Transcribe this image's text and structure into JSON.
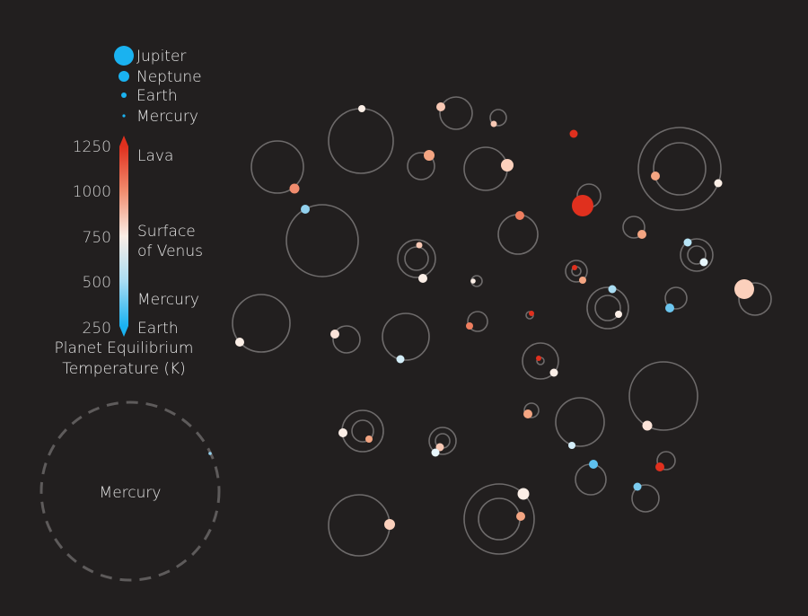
{
  "size_legend": [
    {
      "label": "Jupiter",
      "color": "#1ab2f0"
    },
    {
      "label": "Neptune",
      "color": "#1ab2f0"
    },
    {
      "label": "Earth",
      "color": "#1ab2f0"
    },
    {
      "label": "Mercury",
      "color": "#1ab2f0"
    }
  ],
  "color_scale": {
    "ticks": [
      "1250",
      "1000",
      "750",
      "500",
      "250"
    ],
    "annotations": [
      "Lava",
      "Surface",
      "of Venus",
      "Mercury",
      "Earth"
    ],
    "title_line1": "Planet Equilibrium",
    "title_line2": "Temperature (K)",
    "colors": {
      "hot": "#e0301e",
      "warm": "#f4a582",
      "mid": "#fbeee6",
      "cool": "#92d1ee",
      "cold": "#1ab2f0"
    }
  },
  "reference": {
    "label": "Mercury"
  },
  "systems": []
}
